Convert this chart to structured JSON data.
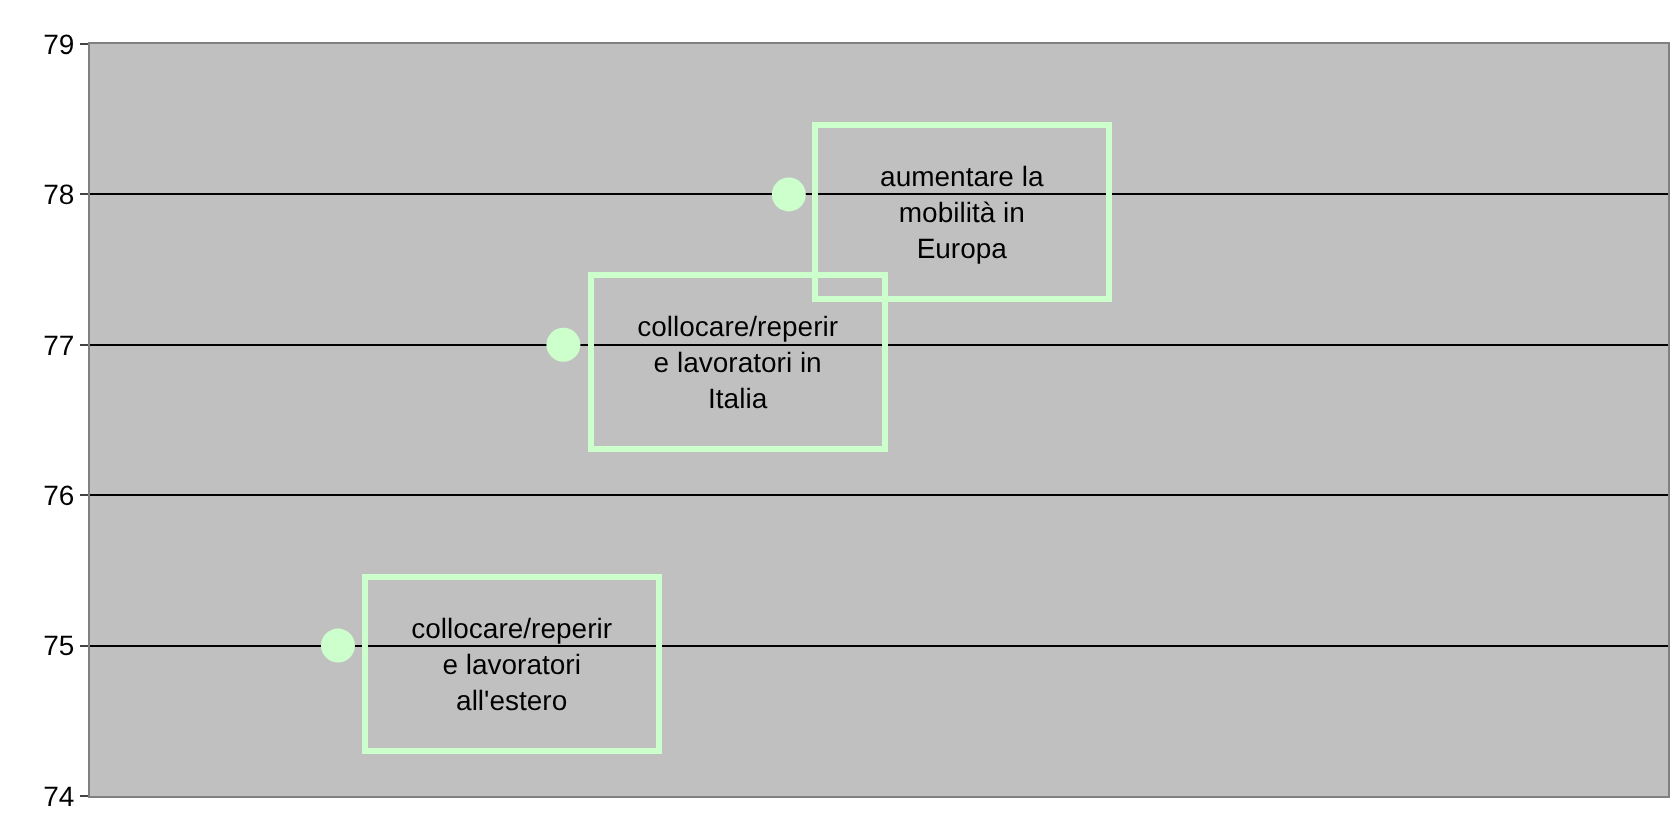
{
  "chart_data": {
    "type": "scatter",
    "categories": [
      null,
      null,
      null,
      null,
      null,
      null,
      null,
      null,
      null,
      null,
      null,
      null,
      null,
      null,
      null,
      null,
      null,
      null,
      null,
      null,
      null,
      null,
      null,
      null,
      null,
      null,
      null,
      null,
      null,
      null,
      null,
      null,
      null,
      null,
      null
    ],
    "series": [
      {
        "color": "#ccffcc",
        "values": [
          null,
          null,
          null,
          null,
          null,
          75,
          null,
          null,
          null,
          null,
          77,
          null,
          null,
          null,
          null,
          78,
          null,
          null,
          null,
          null,
          null,
          null,
          null,
          null,
          null,
          null,
          null,
          null,
          null,
          null,
          null,
          null,
          null,
          null,
          null
        ]
      }
    ],
    "annotations": [
      "collocare/reperir\ne lavoratori\nall'estero",
      "collocare/reperir\ne lavoratori in\nItalia",
      "aumentare la\nmobilità in\nEuropa"
    ],
    "ylim": [
      74,
      79
    ],
    "yticks": [
      74,
      75,
      76,
      77,
      78,
      79
    ],
    "grid": "y",
    "tick_labels": "y",
    "marker": "circle",
    "legend": false
  }
}
